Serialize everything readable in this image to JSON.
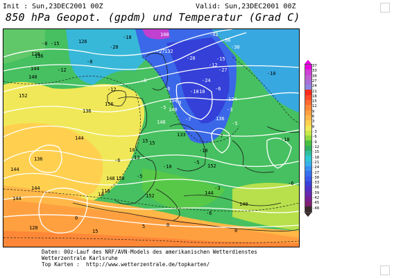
{
  "header": {
    "init": "Init : Sun,23DEC2001 00Z",
    "valid": "Valid: Sun,23DEC2001 00Z",
    "title": "850 hPa Geopot. (gpdm) und Temperatur (Grad C)"
  },
  "scale": {
    "labels": [
      "37",
      "33",
      "30",
      "27",
      "24",
      "21",
      "18",
      "15",
      "12",
      "9",
      "6",
      "3",
      "0",
      "-3",
      "-6",
      "-9",
      "-12",
      "-15",
      "-18",
      "-21",
      "-24",
      "-27",
      "-30",
      "-33",
      "-36",
      "-39",
      "-42",
      "-45",
      "-48"
    ],
    "colors": [
      "#e800e0",
      "#d040d8",
      "#c060d0",
      "#a870d8",
      "#8c88e0",
      "#ff2a1e",
      "#ff4a28",
      "#ff6a30",
      "#ff8838",
      "#ffa040",
      "#ffb848",
      "#ffd050",
      "#f0e858",
      "#c8e848",
      "#90d840",
      "#48c040",
      "#30b060",
      "#30c0a0",
      "#30c8d0",
      "#38b0e8",
      "#3890f0",
      "#3870f0",
      "#3a58e8",
      "#3a40d8",
      "#5030c8",
      "#6828b0",
      "#782090",
      "#802070",
      "#3a2a2a"
    ]
  },
  "map": {
    "labels": [
      {
        "t": "-8"
      },
      {
        "t": "-15"
      },
      {
        "t": "126"
      },
      {
        "t": "-18"
      },
      {
        "t": "100"
      },
      {
        "t": "-42"
      },
      {
        "t": "-36"
      },
      {
        "t": "-30"
      },
      {
        "t": "128"
      },
      {
        "t": "-20"
      },
      {
        "t": "-27"
      },
      {
        "t": "132"
      },
      {
        "t": "-20"
      },
      {
        "t": "-15"
      },
      {
        "t": "-27"
      },
      {
        "t": "-24"
      },
      {
        "t": "136"
      },
      {
        "t": "-8"
      },
      {
        "t": "-12"
      },
      {
        "t": "144"
      },
      {
        "t": "-12"
      },
      {
        "t": "-9"
      },
      {
        "t": "-6"
      },
      {
        "t": "-10"
      },
      {
        "t": "140"
      },
      {
        "t": "-12"
      },
      {
        "t": "124"
      },
      {
        "t": "-5"
      },
      {
        "t": "-10"
      },
      {
        "t": "-6"
      },
      {
        "t": "-3"
      },
      {
        "t": "136"
      },
      {
        "t": "-7"
      },
      {
        "t": "152"
      },
      {
        "t": "154"
      },
      {
        "t": "-3"
      },
      {
        "t": "140"
      },
      {
        "t": "-10"
      },
      {
        "t": "133"
      },
      {
        "t": "-5"
      },
      {
        "t": "136"
      },
      {
        "t": "-6"
      },
      {
        "t": "156"
      },
      {
        "t": "15"
      },
      {
        "t": "-7"
      },
      {
        "t": "-10"
      },
      {
        "t": "148"
      },
      {
        "t": "144"
      },
      {
        "t": "-5"
      },
      {
        "t": "-6"
      },
      {
        "t": "144"
      },
      {
        "t": "10"
      },
      {
        "t": "13"
      },
      {
        "t": "-5"
      },
      {
        "t": "152"
      },
      {
        "t": "15"
      },
      {
        "t": "158"
      },
      {
        "t": "-10"
      },
      {
        "t": "144"
      },
      {
        "t": "-6"
      },
      {
        "t": "148"
      },
      {
        "t": "14"
      },
      {
        "t": "144"
      },
      {
        "t": "0"
      },
      {
        "t": "5"
      },
      {
        "t": "0"
      },
      {
        "t": "-3"
      },
      {
        "t": "0"
      },
      {
        "t": "116"
      },
      {
        "t": "-10"
      },
      {
        "t": "152"
      },
      {
        "t": "136"
      },
      {
        "t": "15"
      },
      {
        "t": "128"
      },
      {
        "t": "144"
      },
      {
        "t": "140"
      }
    ]
  },
  "footer": {
    "line1": "Daten: 00z-Lauf des NRF/AVN-Models des amerikanischen Wetterdienstes",
    "line2": "Wetterzentrale Karlsruhe",
    "line3": "Top Karten :  http://www.wetterzentrale.de/topkarten/"
  }
}
